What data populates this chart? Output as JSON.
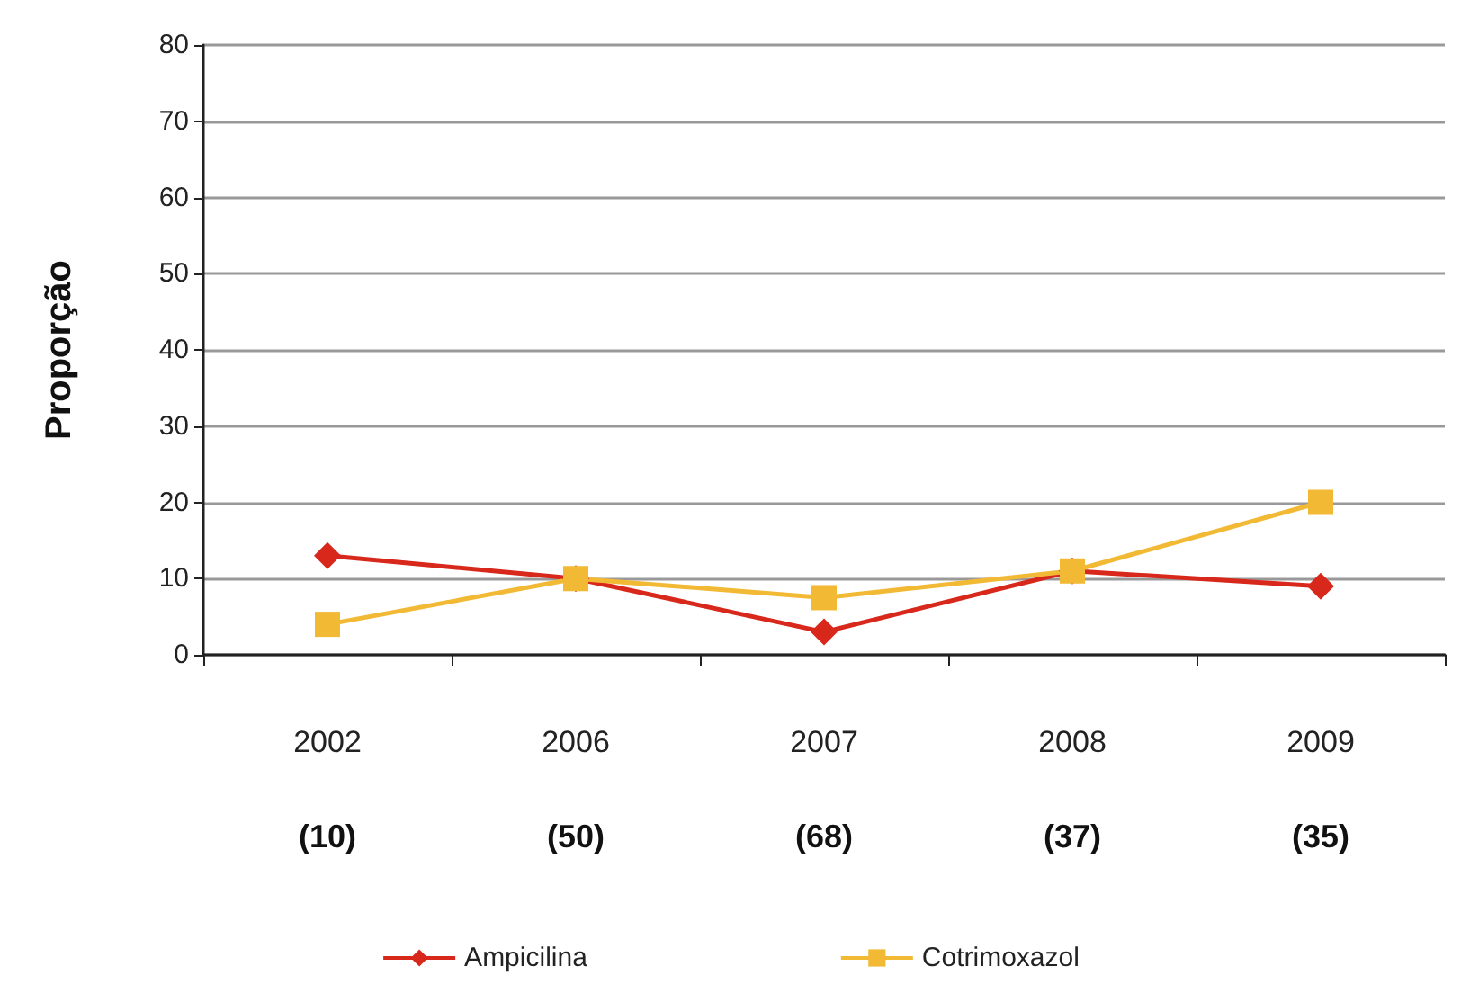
{
  "chart_data": {
    "type": "line",
    "ylabel": "Proporção",
    "categories": [
      "2002",
      "2006",
      "2007",
      "2008",
      "2009"
    ],
    "series": [
      {
        "name": "Ampicilina",
        "color": "#d8281c",
        "marker": "diamond",
        "values": [
          13,
          10,
          3,
          11,
          9
        ]
      },
      {
        "name": "Cotrimoxazol",
        "color": "#f2b935",
        "marker": "square",
        "values": [
          4,
          10,
          7.5,
          11,
          20
        ]
      }
    ],
    "ylim": [
      0,
      80
    ],
    "yticks": [
      0,
      10,
      20,
      30,
      40,
      50,
      60,
      70,
      80
    ],
    "grid": "y",
    "legend": "bottom",
    "annotations": [
      "(10)",
      "(50)",
      "(68)",
      "(37)",
      "(35)"
    ]
  }
}
